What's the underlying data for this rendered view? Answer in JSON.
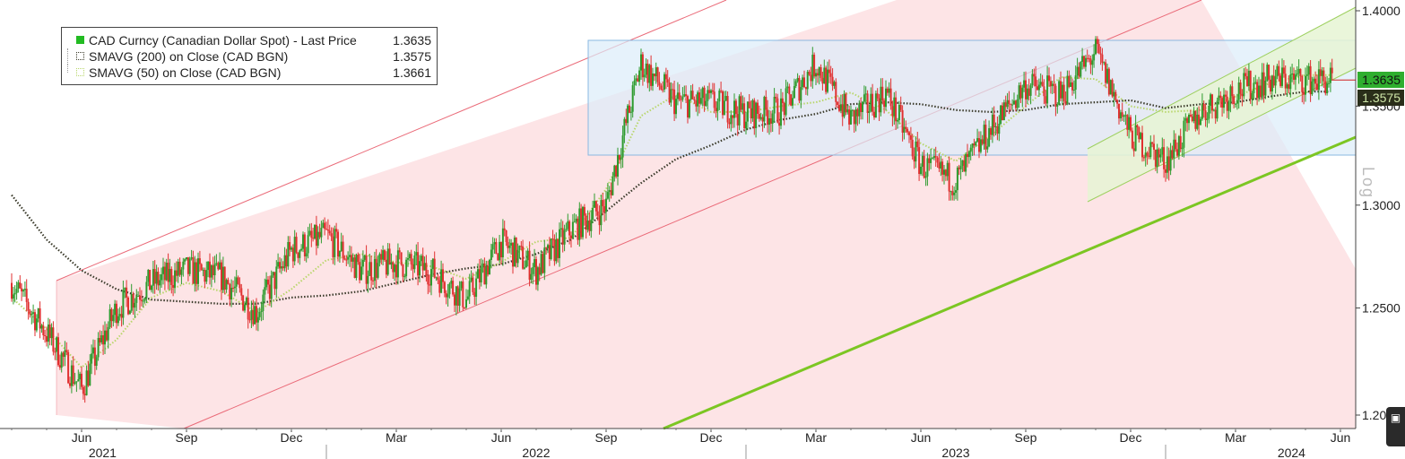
{
  "legend": {
    "rows": [
      {
        "name": "CAD Curncy (Canadian Dollar Spot) - Last Price",
        "value": "1.3635",
        "color": "#22bb22"
      },
      {
        "name": "SMAVG (200)  on Close (CAD BGN)",
        "value": "1.3575",
        "color": "#3a3a2a"
      },
      {
        "name": "SMAVG (50)  on Close (CAD BGN)",
        "value": "1.3661",
        "color": "#b8d66a"
      }
    ]
  },
  "price_tags": {
    "last": "1.3635",
    "sma200": "1.3575"
  },
  "axis_label": "Log",
  "corner_icon": "expand-icon",
  "colors": {
    "price_up": "#2e9b2e",
    "price_down": "#e03030",
    "sma200": "#3a3a2a",
    "sma50": "#b8d66a",
    "channel_red_fill": "#fde4e6",
    "channel_red_line": "#ea6a78",
    "range_blue_fill": "#dcecfa",
    "range_blue_line": "#8ab8e0",
    "channel_green_fill": "#e6f5d4",
    "channel_green_line": "#9ed060",
    "support_green": "#7cc623"
  },
  "chart_data": {
    "type": "line",
    "title": "",
    "ylabel": "Log",
    "ylim": [
      1.195,
      1.402
    ],
    "y_scale": "log",
    "grid": false,
    "legend_position": "top-left",
    "y_ticks": [
      "1.2000",
      "1.2500",
      "1.3000",
      "1.3500",
      "1.4000"
    ],
    "x_month_ticks": [
      "Jun",
      "Sep",
      "Dec",
      "Mar",
      "Jun",
      "Sep",
      "Dec",
      "Mar",
      "Jun",
      "Sep",
      "Dec",
      "Mar",
      "Jun"
    ],
    "x_year_labels": [
      "2021",
      "2022",
      "2023",
      "2024"
    ],
    "x": [
      "2021-04",
      "2021-05",
      "2021-06",
      "2021-07",
      "2021-08",
      "2021-09",
      "2021-10",
      "2021-11",
      "2021-12",
      "2022-01",
      "2022-02",
      "2022-03",
      "2022-04",
      "2022-05",
      "2022-06",
      "2022-07",
      "2022-08",
      "2022-09",
      "2022-10",
      "2022-11",
      "2022-12",
      "2023-01",
      "2023-02",
      "2023-03",
      "2023-04",
      "2023-05",
      "2023-06",
      "2023-07",
      "2023-08",
      "2023-09",
      "2023-10",
      "2023-11",
      "2023-12",
      "2024-01",
      "2024-02",
      "2024-03",
      "2024-04",
      "2024-05"
    ],
    "series": [
      {
        "name": "CAD Curncy (Canadian Dollar Spot) - Last Price",
        "values": [
          1.262,
          1.238,
          1.212,
          1.25,
          1.262,
          1.268,
          1.265,
          1.248,
          1.278,
          1.285,
          1.268,
          1.272,
          1.268,
          1.254,
          1.282,
          1.268,
          1.288,
          1.3,
          1.372,
          1.352,
          1.352,
          1.346,
          1.348,
          1.372,
          1.343,
          1.357,
          1.32,
          1.312,
          1.338,
          1.361,
          1.356,
          1.378,
          1.335,
          1.322,
          1.347,
          1.358,
          1.364,
          1.3635
        ]
      },
      {
        "name": "SMAVG (200)  on Close (CAD BGN)",
        "values": [
          1.305,
          1.283,
          1.268,
          1.259,
          1.254,
          1.253,
          1.252,
          1.252,
          1.255,
          1.256,
          1.258,
          1.262,
          1.266,
          1.269,
          1.271,
          1.276,
          1.283,
          1.297,
          1.311,
          1.323,
          1.33,
          1.338,
          1.343,
          1.346,
          1.351,
          1.352,
          1.351,
          1.348,
          1.347,
          1.348,
          1.351,
          1.352,
          1.353,
          1.349,
          1.351,
          1.352,
          1.355,
          1.3575
        ]
      },
      {
        "name": "SMAVG (50)  on Close (CAD BGN)",
        "values": [
          1.255,
          1.24,
          1.222,
          1.235,
          1.255,
          1.262,
          1.258,
          1.248,
          1.259,
          1.273,
          1.276,
          1.272,
          1.27,
          1.264,
          1.272,
          1.282,
          1.284,
          1.308,
          1.345,
          1.356,
          1.347,
          1.347,
          1.35,
          1.352,
          1.357,
          1.348,
          1.331,
          1.322,
          1.335,
          1.35,
          1.365,
          1.364,
          1.35,
          1.347,
          1.348,
          1.355,
          1.362,
          1.3661
        ]
      }
    ]
  }
}
